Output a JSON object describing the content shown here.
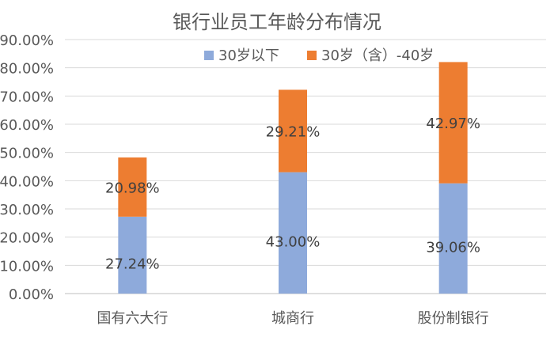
{
  "chart_data": {
    "type": "bar",
    "stacked": true,
    "title": "银行业员工年龄分布情况",
    "categories": [
      "国有六大行",
      "城商行",
      "股份制银行"
    ],
    "series": [
      {
        "name": "30岁以下",
        "color": "#8eaadb",
        "values": [
          27.24,
          43.0,
          39.06
        ]
      },
      {
        "name": "30岁（含）-40岁",
        "color": "#ed7d31",
        "values": [
          20.98,
          29.21,
          42.97
        ]
      }
    ],
    "data_labels": [
      [
        "27.24%",
        "43.00%",
        "39.06%"
      ],
      [
        "20.98%",
        "29.21%",
        "42.97%"
      ]
    ],
    "yticks": [
      "0.00%",
      "10.00%",
      "20.00%",
      "30.00%",
      "40.00%",
      "50.00%",
      "60.00%",
      "70.00%",
      "80.00%",
      "90.00%"
    ],
    "ylim": [
      0,
      90
    ],
    "grid": true,
    "legend_position": "top"
  }
}
